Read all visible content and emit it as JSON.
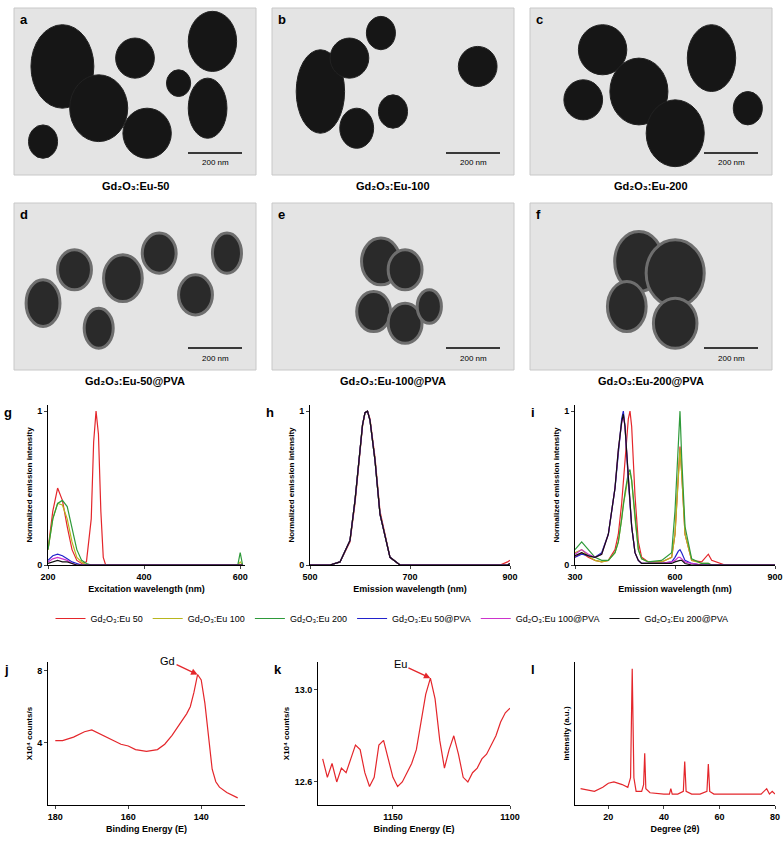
{
  "images": [
    {
      "panel": "a",
      "caption": "Gd₂O₃:Eu-50",
      "scale_bar": "200 nm"
    },
    {
      "panel": "b",
      "caption": "Gd₂O₃:Eu-100",
      "scale_bar": "200 nm"
    },
    {
      "panel": "c",
      "caption": "Gd₂O₃:Eu-200",
      "scale_bar": "200 nm"
    },
    {
      "panel": "d",
      "caption": "Gd₂O₃:Eu-50@PVA",
      "scale_bar": "200 nm"
    },
    {
      "panel": "e",
      "caption": "Gd₂O₃:Eu-100@PVA",
      "scale_bar": "200 nm"
    },
    {
      "panel": "f",
      "caption": "Gd₂O₃:Eu-200@PVA",
      "scale_bar": "200 nm"
    }
  ],
  "chart_data": [
    {
      "type": "line",
      "panel": "g",
      "x_label": "Excitation wavelength (nm)",
      "y_label": "Normalized emission intensity",
      "x": [
        200,
        210,
        220,
        230,
        240,
        250,
        260,
        270,
        280,
        290,
        295,
        300,
        305,
        310,
        315,
        320,
        350,
        400,
        450,
        500,
        550,
        590,
        595,
        600,
        605
      ],
      "series": [
        {
          "name": "Gd₂O₃:Eu 50",
          "color": "#e4262b",
          "values": [
            0.1,
            0.35,
            0.5,
            0.42,
            0.25,
            0.1,
            0.03,
            0.01,
            0.02,
            0.3,
            0.8,
            1,
            0.85,
            0.35,
            0.05,
            0,
            0,
            0,
            0,
            0,
            0,
            0,
            0,
            0,
            0
          ]
        },
        {
          "name": "Gd₂O₃:Eu 100",
          "color": "#b8b61e",
          "values": [
            0.1,
            0.3,
            0.4,
            0.39,
            0.3,
            0.15,
            0.05,
            0.02,
            0,
            0,
            0,
            0,
            0,
            0,
            0,
            0,
            0,
            0,
            0,
            0,
            0,
            0,
            0,
            0.02,
            0
          ]
        },
        {
          "name": "Gd₂O₃:Eu 200",
          "color": "#2e9a3a",
          "values": [
            0.1,
            0.3,
            0.4,
            0.42,
            0.38,
            0.25,
            0.1,
            0.03,
            0.01,
            0,
            0,
            0,
            0,
            0,
            0,
            0,
            0,
            0,
            0,
            0,
            0,
            0,
            0,
            0.08,
            0
          ]
        },
        {
          "name": "Gd₂O₃:Eu 50@PVA",
          "color": "#2222cc",
          "values": [
            0.03,
            0.06,
            0.07,
            0.06,
            0.04,
            0.02,
            0.01,
            0,
            0,
            0,
            0,
            0,
            0,
            0,
            0,
            0,
            0,
            0,
            0,
            0,
            0,
            0,
            0,
            0,
            0
          ]
        },
        {
          "name": "Gd₂O₃:Eu 100@PVA",
          "color": "#cc33cc",
          "values": [
            0.02,
            0.04,
            0.05,
            0.04,
            0.03,
            0.01,
            0,
            0,
            0,
            0,
            0,
            0,
            0,
            0,
            0,
            0,
            0,
            0,
            0,
            0,
            0,
            0,
            0,
            0,
            0
          ]
        },
        {
          "name": "Gd₂O₃:Eu 200@PVA",
          "color": "#111111",
          "values": [
            0.01,
            0.02,
            0.03,
            0.02,
            0.02,
            0.01,
            0,
            0,
            0,
            0,
            0,
            0,
            0,
            0,
            0,
            0,
            0,
            0,
            0,
            0,
            0,
            0,
            0,
            0,
            0
          ]
        }
      ],
      "xlim": [
        200,
        610
      ],
      "xticks": [
        200,
        400,
        600
      ],
      "ylim": [
        0,
        1.04
      ],
      "yticks": [
        0,
        1
      ],
      "grid": false,
      "legend": "bottom"
    },
    {
      "type": "line",
      "panel": "h",
      "x_label": "Emission wavelength (nm)",
      "y_label": "Normalized emission intensity",
      "x": [
        500,
        540,
        560,
        580,
        590,
        600,
        605,
        610,
        615,
        620,
        630,
        640,
        660,
        680,
        700,
        800,
        880,
        895,
        900
      ],
      "series": [
        {
          "name": "Gd₂O₃:Eu 50",
          "color": "#e4262b",
          "values": [
            0,
            0,
            0.02,
            0.15,
            0.4,
            0.75,
            0.9,
            0.99,
            1,
            0.95,
            0.7,
            0.35,
            0.05,
            0,
            0,
            0,
            0,
            0.02,
            0.03
          ]
        },
        {
          "name": "Gd₂O₃:Eu 100",
          "color": "#b8b61e",
          "values": [
            0,
            0,
            0.02,
            0.16,
            0.42,
            0.77,
            0.91,
            0.99,
            1,
            0.94,
            0.68,
            0.33,
            0.05,
            0,
            0,
            0,
            0,
            0,
            0.01
          ]
        },
        {
          "name": "Gd₂O₃:Eu 200",
          "color": "#2e9a3a",
          "values": [
            0,
            0,
            0.02,
            0.16,
            0.42,
            0.77,
            0.91,
            0.99,
            1,
            0.94,
            0.68,
            0.33,
            0.05,
            0,
            0,
            0,
            0,
            0,
            0.01
          ]
        },
        {
          "name": "Gd₂O₃:Eu 50@PVA",
          "color": "#2222cc",
          "values": [
            0,
            0,
            0.02,
            0.16,
            0.42,
            0.77,
            0.91,
            0.99,
            1,
            0.94,
            0.68,
            0.33,
            0.05,
            0,
            0,
            0,
            0,
            0,
            0.01
          ]
        },
        {
          "name": "Gd₂O₃:Eu 100@PVA",
          "color": "#cc33cc",
          "values": [
            0,
            0,
            0.02,
            0.16,
            0.42,
            0.77,
            0.91,
            0.99,
            1,
            0.94,
            0.68,
            0.33,
            0.05,
            0,
            0,
            0,
            0,
            0,
            0.01
          ]
        },
        {
          "name": "Gd₂O₃:Eu 200@PVA",
          "color": "#111111",
          "values": [
            0,
            0,
            0.02,
            0.16,
            0.42,
            0.77,
            0.91,
            0.99,
            1,
            0.94,
            0.68,
            0.33,
            0.05,
            0,
            0,
            0,
            0,
            0,
            0.01
          ]
        }
      ],
      "xlim": [
        500,
        900
      ],
      "xticks": [
        500,
        700,
        900
      ],
      "ylim": [
        0,
        1.04
      ],
      "yticks": [
        0,
        1
      ],
      "grid": false,
      "legend": "bottom"
    },
    {
      "type": "line",
      "panel": "i",
      "x_label": "Emission wavelength (nm)",
      "y_label": "Normalized emission intensity",
      "x": [
        300,
        320,
        340,
        360,
        380,
        400,
        420,
        430,
        440,
        445,
        450,
        460,
        465,
        470,
        480,
        490,
        500,
        520,
        560,
        590,
        600,
        610,
        615,
        620,
        630,
        650,
        680,
        700,
        710,
        750,
        800,
        900
      ],
      "series": [
        {
          "name": "Gd₂O₃:Eu 50",
          "color": "#e4262b",
          "values": [
            0.05,
            0.08,
            0.05,
            0.03,
            0.02,
            0.03,
            0.1,
            0.2,
            0.4,
            0.55,
            0.7,
            0.95,
            1,
            0.9,
            0.45,
            0.15,
            0.05,
            0.02,
            0.02,
            0.05,
            0.2,
            0.55,
            0.77,
            0.6,
            0.2,
            0.03,
            0.02,
            0.07,
            0.03,
            0,
            0,
            0
          ]
        },
        {
          "name": "Gd₂O₃:Eu 100",
          "color": "#b8b61e",
          "values": [
            0.08,
            0.1,
            0.06,
            0.03,
            0.02,
            0.03,
            0.08,
            0.15,
            0.3,
            0.4,
            0.45,
            0.58,
            0.6,
            0.55,
            0.3,
            0.1,
            0.04,
            0.02,
            0.02,
            0.05,
            0.2,
            0.55,
            0.75,
            0.6,
            0.2,
            0.03,
            0.01,
            0.01,
            0,
            0,
            0,
            0
          ]
        },
        {
          "name": "Gd₂O₃:Eu 200",
          "color": "#2e9a3a",
          "values": [
            0.1,
            0.15,
            0.1,
            0.05,
            0.03,
            0.03,
            0.08,
            0.15,
            0.3,
            0.4,
            0.47,
            0.6,
            0.62,
            0.55,
            0.3,
            0.1,
            0.04,
            0.02,
            0.03,
            0.08,
            0.35,
            0.75,
            1,
            0.7,
            0.25,
            0.04,
            0.01,
            0.01,
            0,
            0,
            0,
            0
          ]
        },
        {
          "name": "Gd₂O₃:Eu 50@PVA",
          "color": "#2222cc",
          "values": [
            0.05,
            0.07,
            0.06,
            0.05,
            0.08,
            0.2,
            0.5,
            0.75,
            0.95,
            1,
            0.9,
            0.55,
            0.4,
            0.25,
            0.08,
            0.03,
            0.01,
            0.01,
            0.01,
            0.02,
            0.05,
            0.09,
            0.1,
            0.08,
            0.03,
            0.01,
            0,
            0,
            0,
            0,
            0,
            0
          ]
        },
        {
          "name": "Gd₂O₃:Eu 100@PVA",
          "color": "#cc33cc",
          "values": [
            0.07,
            0.1,
            0.07,
            0.05,
            0.07,
            0.2,
            0.5,
            0.75,
            0.92,
            0.97,
            0.9,
            0.55,
            0.4,
            0.25,
            0.08,
            0.03,
            0.01,
            0.01,
            0.01,
            0.02,
            0.03,
            0.05,
            0.05,
            0.04,
            0.02,
            0.01,
            0,
            0,
            0,
            0,
            0,
            0
          ]
        },
        {
          "name": "Gd₂O₃:Eu 200@PVA",
          "color": "#111111",
          "values": [
            0.06,
            0.08,
            0.06,
            0.05,
            0.07,
            0.2,
            0.5,
            0.75,
            0.93,
            0.98,
            0.9,
            0.55,
            0.4,
            0.25,
            0.08,
            0.03,
            0.01,
            0.01,
            0.01,
            0.01,
            0.02,
            0.03,
            0.03,
            0.03,
            0.01,
            0,
            0,
            0,
            0,
            0,
            0,
            0
          ]
        }
      ],
      "xlim": [
        300,
        900
      ],
      "xticks": [
        300,
        600,
        900
      ],
      "ylim": [
        0,
        1.04
      ],
      "yticks": [
        0,
        1
      ],
      "grid": false,
      "legend": "bottom"
    },
    {
      "type": "line",
      "panel": "j",
      "x_label": "Binding Energy (E)",
      "y_label": "X10⁴ counts/s",
      "x": [
        180,
        178,
        175,
        172,
        170,
        168,
        165,
        162,
        160,
        158,
        155,
        152,
        150,
        148,
        146,
        144,
        143,
        142,
        141,
        140,
        139,
        138,
        137,
        136,
        135,
        133,
        131,
        130
      ],
      "series": [
        {
          "color": "#e4262b",
          "values": [
            4.1,
            4.1,
            4.3,
            4.6,
            4.7,
            4.5,
            4.2,
            3.9,
            3.8,
            3.6,
            3.5,
            3.6,
            3.9,
            4.4,
            5.0,
            5.6,
            6.0,
            6.8,
            7.8,
            7.5,
            6.2,
            4.5,
            2.5,
            1.8,
            1.5,
            1.2,
            1.0,
            0.9
          ]
        }
      ],
      "annotations": [
        {
          "text": "Gd",
          "x": 141,
          "y": 7.8
        }
      ],
      "xlim": [
        182,
        128
      ],
      "xticks": [
        180,
        160,
        140
      ],
      "ylim": [
        0.5,
        8.5
      ],
      "yticks": [
        4,
        8
      ],
      "grid": false
    },
    {
      "type": "line",
      "panel": "k",
      "x_label": "Binding Energy (E)",
      "y_label": "X10⁴ counts/s",
      "x": [
        1180,
        1178,
        1176,
        1174,
        1172,
        1170,
        1168,
        1166,
        1164,
        1162,
        1160,
        1158,
        1156,
        1154,
        1152,
        1150,
        1148,
        1146,
        1144,
        1142,
        1140,
        1138,
        1136,
        1134,
        1132,
        1130,
        1128,
        1126,
        1124,
        1122,
        1120,
        1118,
        1116,
        1114,
        1112,
        1110,
        1108,
        1106,
        1104,
        1102,
        1100
      ],
      "series": [
        {
          "color": "#e4262b",
          "values": [
            12.7,
            12.62,
            12.68,
            12.6,
            12.66,
            12.64,
            12.7,
            12.76,
            12.74,
            12.64,
            12.58,
            12.62,
            12.76,
            12.78,
            12.7,
            12.62,
            12.58,
            12.6,
            12.64,
            12.68,
            12.74,
            12.86,
            12.98,
            13.05,
            12.96,
            12.78,
            12.66,
            12.74,
            12.8,
            12.72,
            12.62,
            12.6,
            12.64,
            12.66,
            12.7,
            12.72,
            12.76,
            12.8,
            12.86,
            12.9,
            12.92
          ]
        }
      ],
      "annotations": [
        {
          "text": "Eu",
          "x": 1134,
          "y": 13.05
        }
      ],
      "xlim": [
        1182,
        1100
      ],
      "xticks": [
        1150,
        1100
      ],
      "ylim": [
        12.5,
        13.12
      ],
      "yticks": [
        12.6,
        {
          "value": 13,
          "label": "13.0"
        }
      ],
      "grid": false
    },
    {
      "type": "line",
      "panel": "l",
      "x_label": "Degree (2θ)",
      "y_label": "Intensity (a.u.)",
      "x": [
        10,
        15,
        18,
        20,
        22,
        25,
        27,
        28,
        28.6,
        29.2,
        30,
        32,
        32.7,
        33.1,
        33.5,
        35,
        40,
        42,
        42.5,
        43,
        45,
        47,
        47.5,
        48,
        50,
        53,
        55.5,
        56,
        56.5,
        58,
        60,
        65,
        70,
        75,
        77,
        78,
        79,
        80
      ],
      "series": [
        {
          "color": "#e4262b",
          "values": [
            0.12,
            0.1,
            0.13,
            0.16,
            0.17,
            0.15,
            0.13,
            0.2,
            1.0,
            0.2,
            0.1,
            0.1,
            0.15,
            0.38,
            0.12,
            0.09,
            0.08,
            0.08,
            0.12,
            0.08,
            0.08,
            0.1,
            0.32,
            0.1,
            0.08,
            0.08,
            0.1,
            0.3,
            0.1,
            0.08,
            0.08,
            0.08,
            0.08,
            0.08,
            0.12,
            0.08,
            0.1,
            0.08
          ]
        }
      ],
      "xlim": [
        8,
        80
      ],
      "xticks": [
        20,
        40,
        60,
        80
      ],
      "ylim": [
        0,
        1.05
      ],
      "tick_labels": "x",
      "grid": false
    }
  ]
}
